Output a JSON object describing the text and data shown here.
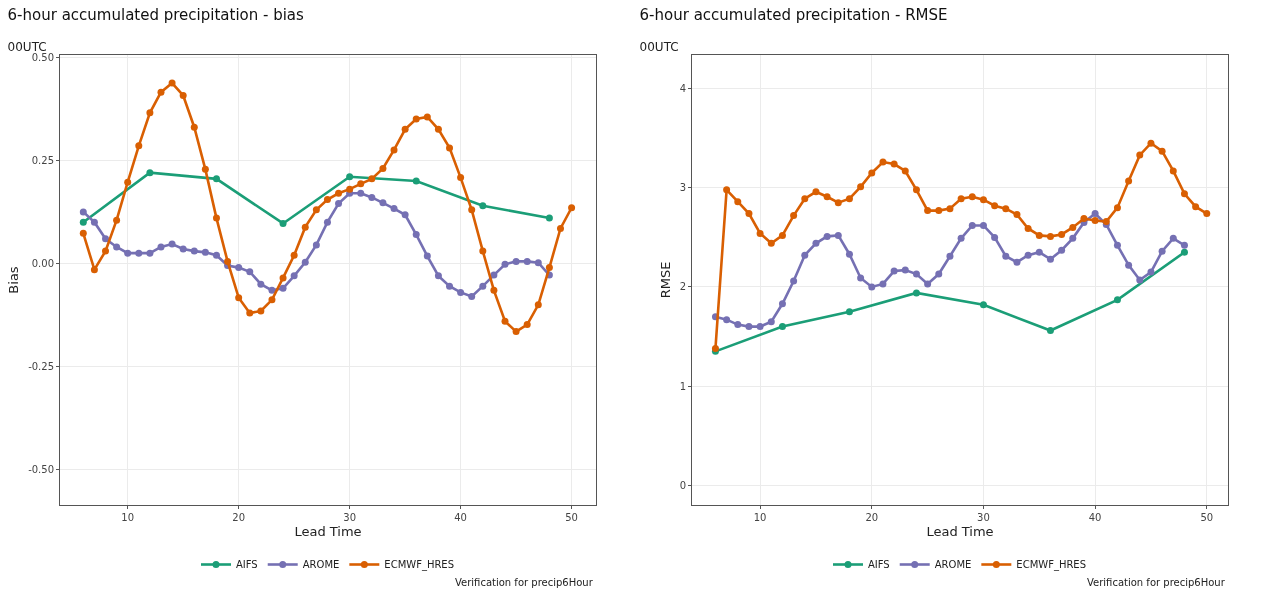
{
  "chart_data": [
    {
      "type": "line",
      "title": "6-hour accumulated precipitation - bias",
      "subtitle": "00UTC",
      "xlabel": "Lead Time",
      "ylabel": "Bias",
      "annotations": [
        "Verification for precip6Hour"
      ],
      "xlim": [
        3.9,
        52.2
      ],
      "xticks": [
        10,
        20,
        30,
        40,
        50
      ],
      "ylim": [
        -0.585,
        0.505
      ],
      "yticks": [
        {
          "value": -0.5,
          "label": "-0.50"
        },
        {
          "value": -0.25,
          "label": "-0.25"
        },
        {
          "value": 0,
          "label": "0.00"
        },
        {
          "value": 0.25,
          "label": "0.25"
        },
        {
          "value": 0.5,
          "label": "0.50"
        }
      ],
      "grid": true,
      "legend": "bottom",
      "marker": "circle",
      "line_style": "solid",
      "series": [
        {
          "name": "AIFS",
          "color": "#1b9e77",
          "x": [
            6,
            12,
            18,
            24,
            30,
            36,
            42,
            48
          ],
          "values": [
            0.1,
            0.22,
            0.205,
            0.097,
            0.21,
            0.2,
            0.14,
            0.11
          ]
        },
        {
          "name": "AROME",
          "color": "#7570b3",
          "x": [
            6,
            7,
            8,
            9,
            10,
            11,
            12,
            13,
            14,
            15,
            16,
            17,
            18,
            19,
            20,
            21,
            22,
            23,
            24,
            25,
            26,
            27,
            28,
            29,
            30,
            31,
            32,
            33,
            34,
            35,
            36,
            37,
            38,
            39,
            40,
            41,
            42,
            43,
            44,
            45,
            46,
            47,
            48
          ],
          "values": [
            0.125,
            0.1,
            0.06,
            0.04,
            0.025,
            0.025,
            0.025,
            0.04,
            0.047,
            0.035,
            0.03,
            0.027,
            0.02,
            -0.005,
            -0.01,
            -0.02,
            -0.05,
            -0.065,
            -0.06,
            -0.03,
            0.003,
            0.045,
            0.1,
            0.145,
            0.17,
            0.17,
            0.16,
            0.147,
            0.133,
            0.118,
            0.07,
            0.018,
            -0.03,
            -0.055,
            -0.07,
            -0.08,
            -0.055,
            -0.028,
            -0.002,
            0.005,
            0.005,
            0.002,
            -0.028
          ]
        },
        {
          "name": "ECMWF_HRES",
          "color": "#d95f02",
          "x": [
            6,
            7,
            8,
            9,
            10,
            11,
            12,
            13,
            14,
            15,
            16,
            17,
            18,
            19,
            20,
            21,
            22,
            23,
            24,
            25,
            26,
            27,
            28,
            29,
            30,
            31,
            32,
            33,
            34,
            35,
            36,
            37,
            38,
            39,
            40,
            41,
            42,
            43,
            44,
            45,
            46,
            47,
            48,
            49,
            50
          ],
          "values": [
            0.073,
            -0.015,
            0.03,
            0.105,
            0.197,
            0.285,
            0.365,
            0.415,
            0.437,
            0.407,
            0.33,
            0.228,
            0.11,
            0.005,
            -0.083,
            -0.12,
            -0.115,
            -0.088,
            -0.035,
            0.02,
            0.088,
            0.13,
            0.155,
            0.17,
            0.18,
            0.193,
            0.205,
            0.23,
            0.275,
            0.325,
            0.35,
            0.355,
            0.325,
            0.28,
            0.208,
            0.13,
            0.03,
            -0.065,
            -0.14,
            -0.165,
            -0.148,
            -0.1,
            -0.01,
            0.085,
            0.135
          ]
        }
      ]
    },
    {
      "type": "line",
      "title": "6-hour accumulated precipitation - RMSE",
      "subtitle": "00UTC",
      "xlabel": "Lead Time",
      "ylabel": "RMSE",
      "annotations": [
        "Verification for precip6Hour"
      ],
      "xlim": [
        3.9,
        51.9
      ],
      "xticks": [
        10,
        20,
        30,
        40,
        50
      ],
      "ylim": [
        -0.2,
        4.34
      ],
      "yticks": [
        0,
        1,
        2,
        3,
        4
      ],
      "grid": true,
      "legend": "bottom",
      "marker": "circle",
      "line_style": "solid",
      "series": [
        {
          "name": "AIFS",
          "color": "#1b9e77",
          "x": [
            6,
            12,
            18,
            24,
            30,
            36,
            42,
            48
          ],
          "values": [
            1.35,
            1.6,
            1.75,
            1.94,
            1.82,
            1.56,
            1.87,
            2.35
          ]
        },
        {
          "name": "AROME",
          "color": "#7570b3",
          "x": [
            6,
            7,
            8,
            9,
            10,
            11,
            12,
            13,
            14,
            15,
            16,
            17,
            18,
            19,
            20,
            21,
            22,
            23,
            24,
            25,
            26,
            27,
            28,
            29,
            30,
            31,
            32,
            33,
            34,
            35,
            36,
            37,
            38,
            39,
            40,
            41,
            42,
            43,
            44,
            45,
            46,
            47,
            48
          ],
          "values": [
            1.7,
            1.67,
            1.62,
            1.6,
            1.6,
            1.65,
            1.83,
            2.06,
            2.32,
            2.44,
            2.51,
            2.52,
            2.33,
            2.09,
            2.0,
            2.03,
            2.16,
            2.17,
            2.13,
            2.03,
            2.13,
            2.31,
            2.49,
            2.62,
            2.62,
            2.5,
            2.31,
            2.25,
            2.32,
            2.35,
            2.28,
            2.37,
            2.49,
            2.65,
            2.74,
            2.63,
            2.42,
            2.22,
            2.07,
            2.15,
            2.36,
            2.49,
            2.42
          ]
        },
        {
          "name": "ECMWF_HRES",
          "color": "#d95f02",
          "x": [
            6,
            7,
            8,
            9,
            10,
            11,
            12,
            13,
            14,
            15,
            16,
            17,
            18,
            19,
            20,
            21,
            22,
            23,
            24,
            25,
            26,
            27,
            28,
            29,
            30,
            31,
            32,
            33,
            34,
            35,
            36,
            37,
            38,
            39,
            40,
            41,
            42,
            43,
            44,
            45,
            46,
            47,
            48,
            49,
            50
          ],
          "values": [
            1.38,
            2.98,
            2.86,
            2.74,
            2.54,
            2.44,
            2.52,
            2.72,
            2.89,
            2.96,
            2.91,
            2.85,
            2.89,
            3.01,
            3.15,
            3.26,
            3.24,
            3.17,
            2.98,
            2.77,
            2.77,
            2.79,
            2.89,
            2.91,
            2.88,
            2.82,
            2.79,
            2.73,
            2.59,
            2.52,
            2.51,
            2.53,
            2.6,
            2.69,
            2.67,
            2.66,
            2.8,
            3.07,
            3.33,
            3.45,
            3.37,
            3.17,
            2.94,
            2.81,
            2.74
          ]
        }
      ]
    }
  ]
}
